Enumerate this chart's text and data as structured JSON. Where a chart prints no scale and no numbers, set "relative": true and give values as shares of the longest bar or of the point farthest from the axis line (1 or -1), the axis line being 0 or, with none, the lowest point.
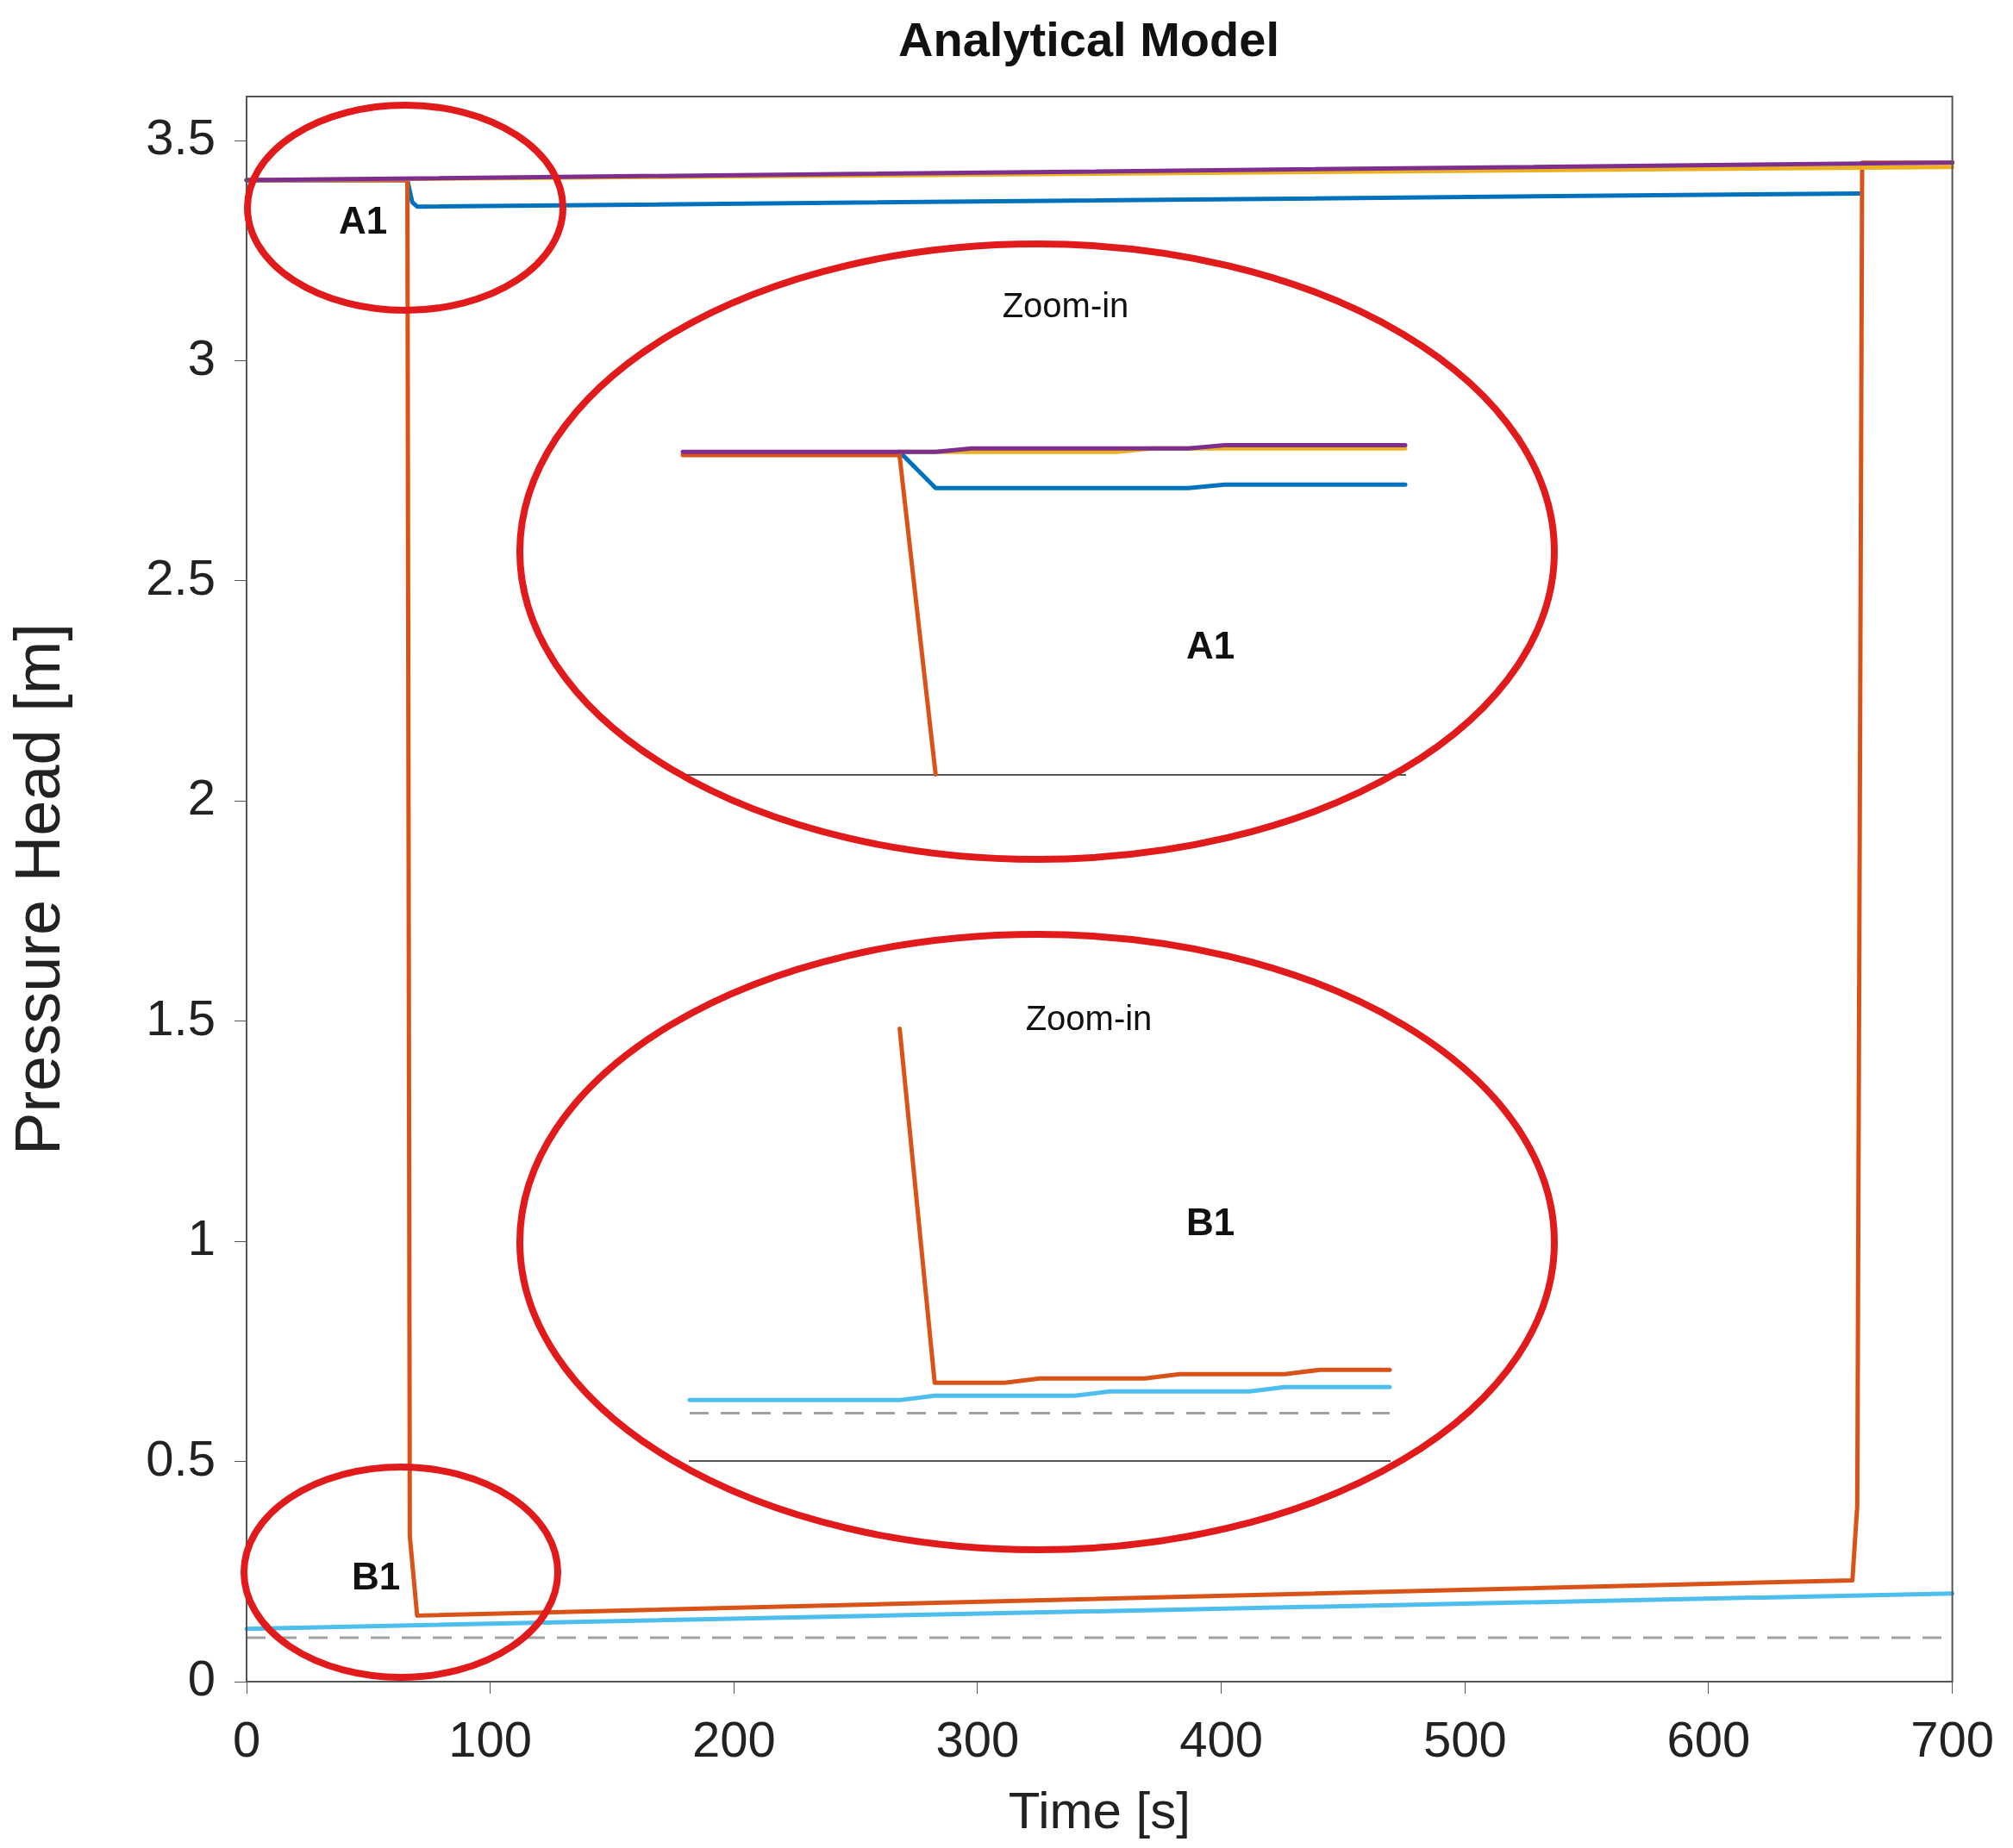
{
  "chart_data": [
    {
      "type": "line",
      "title": "Analytical Model",
      "xlabel": "Time [s]",
      "ylabel": "Pressure Head [m]",
      "xlim": [
        0,
        700
      ],
      "xticks": [
        0,
        100,
        200,
        300,
        400,
        500,
        600,
        700
      ],
      "ylim": [
        0,
        3.6
      ],
      "yticks": [
        0,
        0.5,
        1,
        1.5,
        2,
        2.5,
        3,
        3.5
      ],
      "grid": false,
      "legend": false,
      "marker": "none",
      "line_style": "solid",
      "annotations": [
        "A1",
        "B1"
      ],
      "ref_lines": [
        {
          "axis": "y",
          "value": 0.1,
          "color": "#a0a0a0",
          "line_style": "dashed"
        }
      ],
      "series": [
        {
          "color": "#7e2f8e",
          "x": [
            0,
            700
          ],
          "values": [
            3.41,
            3.45
          ]
        },
        {
          "color": "#edb120",
          "x": [
            0,
            700
          ],
          "values": [
            3.41,
            3.44
          ]
        },
        {
          "color": "#d95319",
          "x": [
            0,
            66,
            67,
            70,
            659,
            661,
            663,
            700
          ],
          "values": [
            3.41,
            3.41,
            0.33,
            0.15,
            0.23,
            0.4,
            3.45,
            3.45
          ]
        },
        {
          "color": "#0072bd",
          "x": [
            0,
            66,
            68,
            70,
            662
          ],
          "values": [
            3.41,
            3.41,
            3.36,
            3.35,
            3.38
          ]
        },
        {
          "color": "#4dbeee",
          "x": [
            0,
            700
          ],
          "values": [
            0.12,
            0.2
          ]
        }
      ]
    },
    {
      "type": "line",
      "title": "Zoom-in",
      "relative": true,
      "legend": false,
      "marker": "none",
      "annotations": [
        "A1"
      ],
      "categories": [
        null,
        null,
        null,
        null,
        null,
        null,
        null,
        null,
        null,
        null,
        null,
        null,
        null,
        null,
        null,
        null,
        null,
        null,
        null,
        null,
        null
      ],
      "series": [
        {
          "color": "#7e2f8e",
          "values": [
            0.98,
            0.98,
            0.98,
            0.98,
            0.98,
            0.98,
            0.98,
            0.98,
            0.99,
            0.99,
            0.99,
            0.99,
            0.99,
            0.99,
            0.99,
            1,
            1,
            1,
            1,
            1,
            1
          ]
        },
        {
          "color": "#edb120",
          "values": [
            null,
            null,
            null,
            null,
            null,
            null,
            0.98,
            0.98,
            0.98,
            0.98,
            0.98,
            0.98,
            0.98,
            0.99,
            0.99,
            0.99,
            0.99,
            0.99,
            0.99,
            0.99,
            0.99
          ]
        },
        {
          "color": "#d95319",
          "values": [
            0.97,
            0.97,
            0.97,
            0.97,
            0.97,
            0.97,
            0.97,
            0,
            null,
            null,
            null,
            null,
            null,
            null,
            null,
            null,
            null,
            null,
            null,
            null,
            null
          ]
        },
        {
          "color": "#0072bd",
          "values": [
            null,
            null,
            null,
            null,
            null,
            null,
            0.98,
            0.87,
            0.87,
            0.87,
            0.87,
            0.87,
            0.87,
            0.87,
            0.87,
            0.88,
            0.88,
            0.88,
            0.88,
            0.88,
            0.88
          ]
        }
      ]
    },
    {
      "type": "line",
      "title": "Zoom-in",
      "relative": true,
      "legend": false,
      "marker": "none",
      "annotations": [
        "B1"
      ],
      "categories": [
        null,
        null,
        null,
        null,
        null,
        null,
        null,
        null,
        null,
        null,
        null,
        null,
        null,
        null,
        null,
        null,
        null,
        null,
        null,
        null,
        null
      ],
      "ref_lines": [
        {
          "axis": "y",
          "value": 0.11,
          "color": "#a0a0a0",
          "line_style": "dashed"
        }
      ],
      "series": [
        {
          "color": "#d95319",
          "values": [
            null,
            null,
            null,
            null,
            null,
            null,
            1,
            0.18,
            0.18,
            0.18,
            0.19,
            0.19,
            0.19,
            0.19,
            0.2,
            0.2,
            0.2,
            0.2,
            0.21,
            0.21,
            0.21
          ]
        },
        {
          "color": "#4dbeee",
          "values": [
            0.14,
            0.14,
            0.14,
            0.14,
            0.14,
            0.14,
            0.14,
            0.15,
            0.15,
            0.15,
            0.15,
            0.15,
            0.16,
            0.16,
            0.16,
            0.16,
            0.16,
            0.17,
            0.17,
            0.17,
            0.17
          ]
        }
      ]
    }
  ]
}
